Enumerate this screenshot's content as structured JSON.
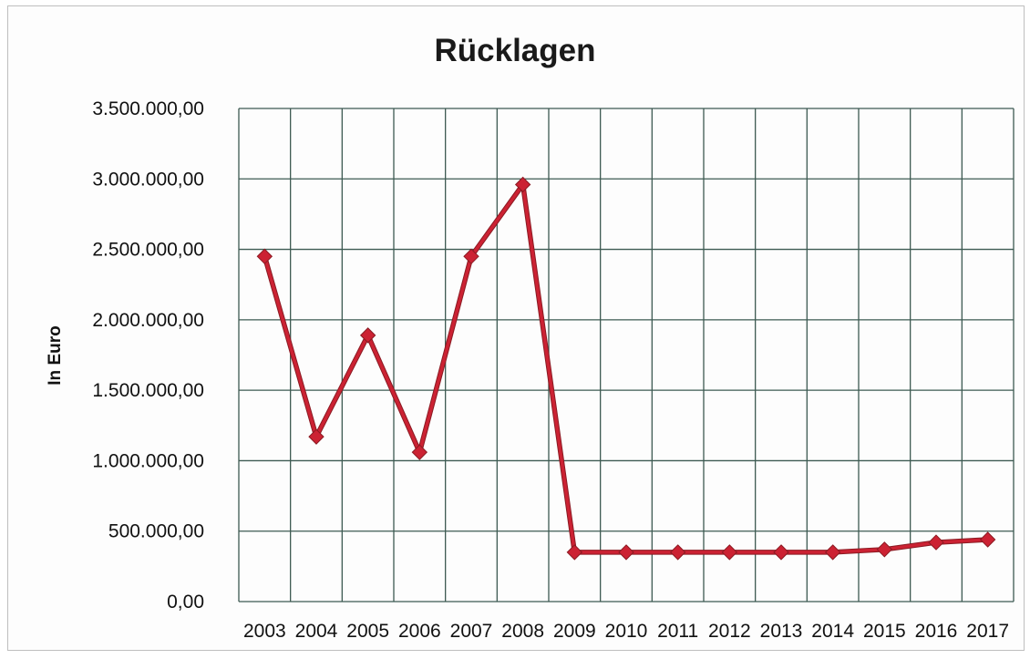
{
  "chart_data": {
    "type": "line",
    "title": "Rücklagen",
    "xlabel": "",
    "ylabel": "In Euro",
    "categories": [
      "2003",
      "2004",
      "2005",
      "2006",
      "2007",
      "2008",
      "2009",
      "2010",
      "2011",
      "2012",
      "2013",
      "2014",
      "2015",
      "2016",
      "2017"
    ],
    "series": [
      {
        "values": [
          2450000,
          1170000,
          1890000,
          1060000,
          2450000,
          2960000,
          350000,
          350000,
          350000,
          350000,
          350000,
          350000,
          370000,
          420000,
          440000
        ],
        "color": "#cc2233"
      }
    ],
    "ylim": [
      0,
      3500000
    ],
    "yticks": [
      0,
      500000,
      1000000,
      1500000,
      2000000,
      2500000,
      3000000,
      3500000
    ],
    "ytick_labels": [
      "0,00",
      "500.000,00",
      "1.000.000,00",
      "1.500.000,00",
      "2.000.000,00",
      "2.500.000,00",
      "3.000.000,00",
      "3.500.000,00"
    ],
    "grid": true,
    "marker": "diamond",
    "colors": {
      "grid": "#3d5a52",
      "line": "#cc2233"
    }
  }
}
